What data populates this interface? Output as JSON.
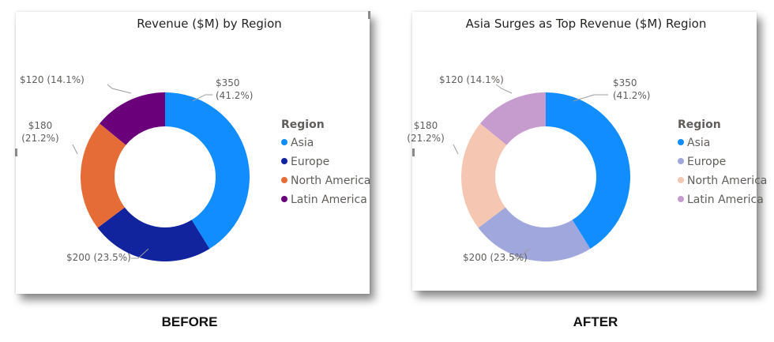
{
  "captions": {
    "before": "BEFORE",
    "after": "AFTER"
  },
  "chart_data": [
    {
      "type": "pie",
      "variant": "donut",
      "title": "Revenue ($M) by Region",
      "legend_title": "Region",
      "legend_position": "right",
      "categories": [
        "Asia",
        "Europe",
        "North America",
        "Latin America"
      ],
      "values": [
        350,
        200,
        180,
        120
      ],
      "data_labels": [
        [
          "$350",
          "(41.2%)"
        ],
        [
          "$200 (23.5%)"
        ],
        [
          "$180",
          "(21.2%)"
        ],
        [
          "$120 (14.1%)"
        ]
      ],
      "colors": [
        "#118dff",
        "#12239e",
        "#e66c37",
        "#6b007b"
      ]
    },
    {
      "type": "pie",
      "variant": "donut",
      "title": "Asia Surges as Top Revenue ($M) Region",
      "legend_title": "Region",
      "legend_position": "right",
      "categories": [
        "Asia",
        "Europe",
        "North America",
        "Latin America"
      ],
      "values": [
        350,
        200,
        180,
        120
      ],
      "data_labels": [
        [
          "$350",
          "(41.2%)"
        ],
        [
          "$200 (23.5%)"
        ],
        [
          "$180",
          "(21.2%)"
        ],
        [
          "$120 (14.1%)"
        ]
      ],
      "colors": [
        "#118dff",
        "#a0a7dc",
        "#f5c6b1",
        "#c59ccd"
      ]
    }
  ]
}
